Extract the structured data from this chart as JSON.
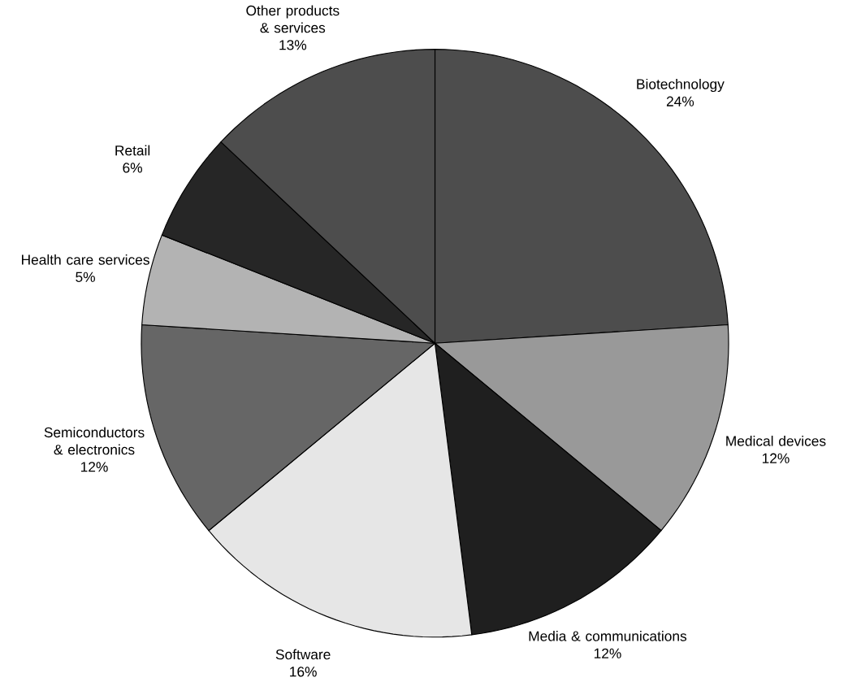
{
  "chart_data": {
    "type": "pie",
    "categories": [
      "Biotechnology",
      "Medical devices",
      "Media & communications",
      "Software",
      "Semiconductors & electronics",
      "Health care services",
      "Retail",
      "Other products & services"
    ],
    "values": [
      24,
      12,
      12,
      16,
      12,
      5,
      6,
      13
    ],
    "colors": [
      "#4d4d4d",
      "#999999",
      "#1f1f1f",
      "#e6e6e6",
      "#666666",
      "#b3b3b3",
      "#262626",
      "#4d4d4d"
    ],
    "value_labels": [
      "24%",
      "12%",
      "12%",
      "16%",
      "12%",
      "5%",
      "6%",
      "13%"
    ]
  }
}
